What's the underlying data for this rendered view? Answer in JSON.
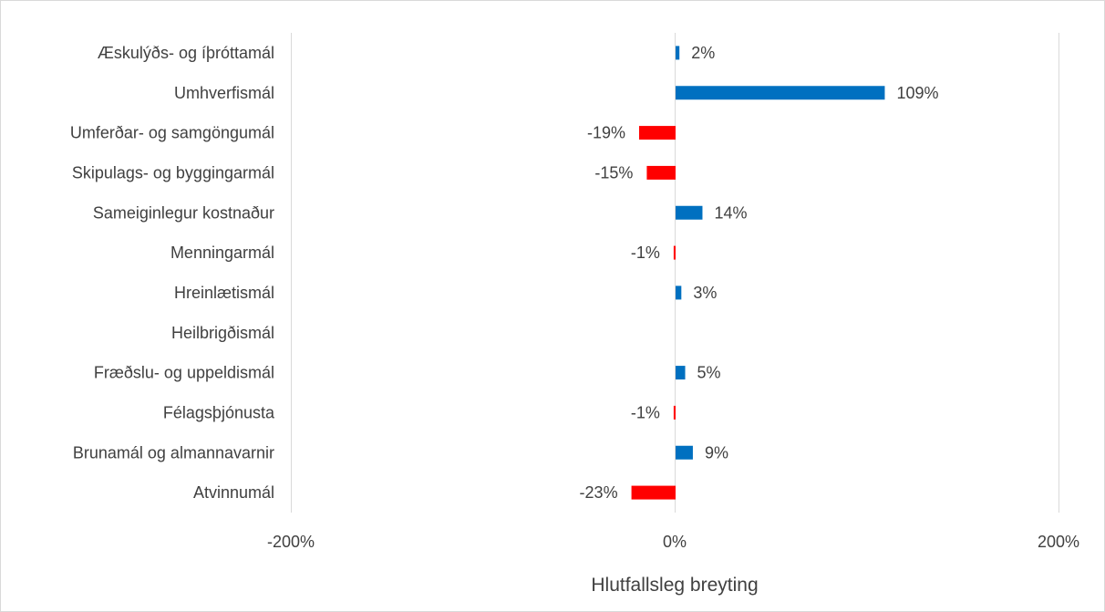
{
  "chart_data": {
    "type": "bar",
    "orientation": "horizontal",
    "categories": [
      "Æskulýðs- og íþróttamál",
      "Umhverfismál",
      "Umferðar- og samgöngumál",
      "Skipulags- og byggingarmál",
      "Sameiginlegur kostnaður",
      "Menningarmál",
      "Hreinlætismál",
      "Heilbrigðismál",
      "Fræðslu- og uppeldismál",
      "Félagsþjónusta",
      "Brunamál og almannavarnir",
      "Atvinnumál"
    ],
    "values": [
      2,
      109,
      -19,
      -15,
      14,
      -1,
      3,
      0,
      5,
      -1,
      9,
      -23
    ],
    "data_labels": [
      "2%",
      "109%",
      "-19%",
      "-15%",
      "14%",
      "-1%",
      "3%",
      "",
      "5%",
      "-1%",
      "9%",
      "-23%"
    ],
    "xlim": [
      -200,
      200
    ],
    "x_ticks": [
      -200,
      0,
      200
    ],
    "x_tick_labels": [
      "-200%",
      "0%",
      "200%"
    ],
    "xlabel": "Hlutfallsleg breyting",
    "ylabel": "",
    "title": "",
    "grid": "vertical major gridlines",
    "colors": {
      "positive": "#0070c0",
      "negative": "#ff0000",
      "gridline": "#d9d9d9",
      "text": "#404040"
    }
  }
}
